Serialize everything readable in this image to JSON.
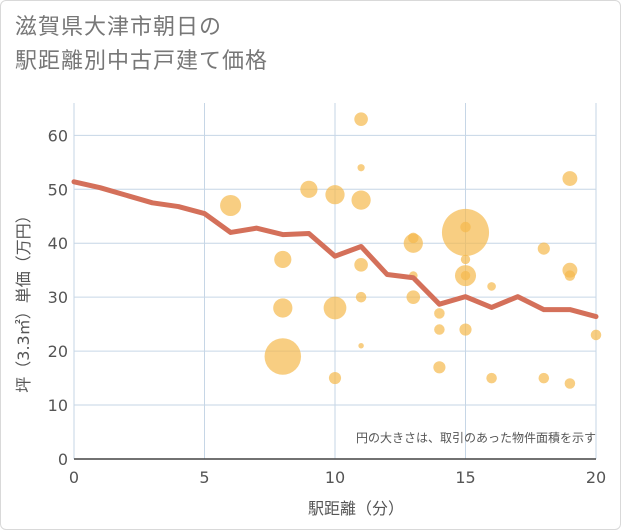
{
  "chart_data": {
    "type": "scatter",
    "title_lines": [
      "滋賀県大津市朝日の",
      "駅距離別中古戸建て価格"
    ],
    "xlabel": "駅距離（分）",
    "ylabel": "坪（3.3㎡）単価（万円）",
    "xlim": [
      0,
      20
    ],
    "ylim": [
      0,
      66
    ],
    "x_ticks": [
      0,
      5,
      10,
      15,
      20
    ],
    "y_ticks": [
      0,
      10,
      20,
      30,
      40,
      50,
      60
    ],
    "note": "円の大きさは、取引のあった物件面積を示す",
    "colors": {
      "bubble": "#f5b94d",
      "line": "#d4705a",
      "grid": "#c6d6e6"
    },
    "points": [
      {
        "x": 6,
        "y": 47,
        "size": 6
      },
      {
        "x": 8,
        "y": 37,
        "size": 4
      },
      {
        "x": 8,
        "y": 28,
        "size": 5
      },
      {
        "x": 8,
        "y": 19,
        "size": 18
      },
      {
        "x": 9,
        "y": 50,
        "size": 4
      },
      {
        "x": 10,
        "y": 49,
        "size": 5
      },
      {
        "x": 10,
        "y": 28,
        "size": 7
      },
      {
        "x": 10,
        "y": 15,
        "size": 2
      },
      {
        "x": 11,
        "y": 63,
        "size": 2.5
      },
      {
        "x": 11,
        "y": 54,
        "size": 0.7
      },
      {
        "x": 11,
        "y": 48,
        "size": 5
      },
      {
        "x": 11,
        "y": 36,
        "size": 2.5
      },
      {
        "x": 11,
        "y": 30,
        "size": 1.5
      },
      {
        "x": 11,
        "y": 21,
        "size": 0.4
      },
      {
        "x": 13,
        "y": 41,
        "size": 1.5
      },
      {
        "x": 13,
        "y": 40,
        "size": 5
      },
      {
        "x": 13,
        "y": 34,
        "size": 1
      },
      {
        "x": 13,
        "y": 30,
        "size": 2.5
      },
      {
        "x": 14,
        "y": 27,
        "size": 1.5
      },
      {
        "x": 14,
        "y": 24,
        "size": 1.5
      },
      {
        "x": 14,
        "y": 17,
        "size": 2
      },
      {
        "x": 15,
        "y": 43,
        "size": 1.5
      },
      {
        "x": 15,
        "y": 42,
        "size": 30
      },
      {
        "x": 15,
        "y": 37,
        "size": 1.2
      },
      {
        "x": 15,
        "y": 34,
        "size": 6
      },
      {
        "x": 15,
        "y": 34,
        "size": 1.2
      },
      {
        "x": 15,
        "y": 24,
        "size": 2
      },
      {
        "x": 16,
        "y": 32,
        "size": 1
      },
      {
        "x": 16,
        "y": 15,
        "size": 1.5
      },
      {
        "x": 18,
        "y": 39,
        "size": 2
      },
      {
        "x": 18,
        "y": 15,
        "size": 1.5
      },
      {
        "x": 19,
        "y": 52,
        "size": 3
      },
      {
        "x": 19,
        "y": 35,
        "size": 3
      },
      {
        "x": 19,
        "y": 34,
        "size": 1.5
      },
      {
        "x": 19,
        "y": 14,
        "size": 1.5
      },
      {
        "x": 20,
        "y": 23,
        "size": 1.5
      }
    ],
    "line": {
      "x": [
        0,
        1,
        2,
        3,
        4,
        5,
        6,
        7,
        8,
        9,
        10,
        11,
        12,
        13,
        14,
        15,
        16,
        17,
        18,
        19,
        20
      ],
      "y": [
        51.4,
        50.3,
        48.9,
        47.5,
        46.8,
        45.5,
        42.0,
        42.8,
        41.6,
        41.8,
        37.6,
        39.4,
        34.2,
        33.6,
        28.7,
        30.1,
        28.1,
        30.1,
        27.7,
        27.7,
        26.4
      ]
    }
  }
}
